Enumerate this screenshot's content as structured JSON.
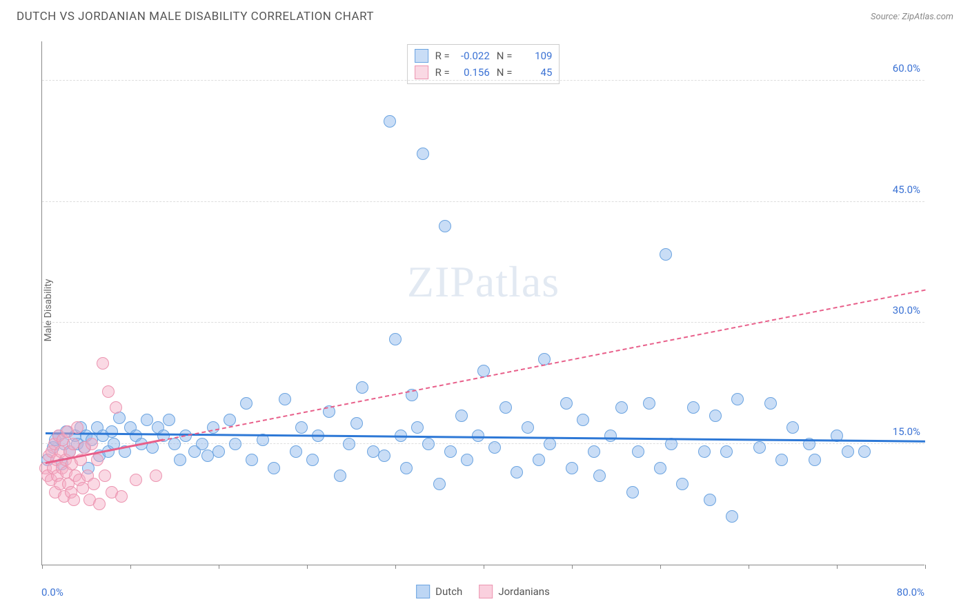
{
  "header": {
    "title": "DUTCH VS JORDANIAN MALE DISABILITY CORRELATION CHART",
    "source": "Source: ZipAtlas.com"
  },
  "chart": {
    "type": "scatter",
    "y_axis_label": "Male Disability",
    "watermark_bold": "ZIP",
    "watermark_light": "atlas",
    "xlim": [
      0,
      80
    ],
    "ylim": [
      0,
      65
    ],
    "x_min_label": "0.0%",
    "x_max_label": "80.0%",
    "x_ticks_count": 11,
    "y_gridlines": [
      15,
      30,
      45,
      60
    ],
    "y_tick_labels": [
      "15.0%",
      "30.0%",
      "45.0%",
      "60.0%"
    ],
    "background_color": "#ffffff",
    "grid_color": "#dddddd",
    "axis_color": "#888888",
    "text_color": "#555555",
    "value_color": "#3b72d4",
    "point_radius": 9,
    "series": [
      {
        "name": "Dutch",
        "fill": "rgba(135,180,235,0.45)",
        "stroke": "#6aa3e0",
        "trend_color": "#2d78d6",
        "trend_width": 3,
        "trend_dash": "solid",
        "R": "-0.022",
        "N": "109",
        "trend_x1": 0.3,
        "trend_y1": 16.2,
        "trend_x2": 80,
        "trend_y2": 15.2,
        "points": [
          [
            0.5,
            13
          ],
          [
            1,
            14.5
          ],
          [
            1.2,
            15.5
          ],
          [
            1.5,
            16
          ],
          [
            1.8,
            12.5
          ],
          [
            2,
            15
          ],
          [
            2.2,
            16.5
          ],
          [
            2.5,
            14
          ],
          [
            3,
            16
          ],
          [
            3.2,
            15
          ],
          [
            3.5,
            17
          ],
          [
            3.8,
            14.5
          ],
          [
            4,
            16
          ],
          [
            4.2,
            12
          ],
          [
            4.5,
            15.5
          ],
          [
            5,
            17
          ],
          [
            5.2,
            13.5
          ],
          [
            5.5,
            16
          ],
          [
            6,
            14
          ],
          [
            6.3,
            16.5
          ],
          [
            6.5,
            15
          ],
          [
            7,
            18.2
          ],
          [
            7.5,
            14
          ],
          [
            8,
            17
          ],
          [
            8.5,
            16
          ],
          [
            9,
            15
          ],
          [
            9.5,
            18
          ],
          [
            10,
            14.5
          ],
          [
            10.5,
            17
          ],
          [
            11,
            16
          ],
          [
            11.5,
            18
          ],
          [
            12,
            15
          ],
          [
            12.5,
            13
          ],
          [
            13,
            16
          ],
          [
            13.8,
            14
          ],
          [
            14.5,
            15
          ],
          [
            15,
            13.5
          ],
          [
            15.5,
            17
          ],
          [
            16,
            14
          ],
          [
            17,
            18
          ],
          [
            17.5,
            15
          ],
          [
            18.5,
            20
          ],
          [
            19,
            13
          ],
          [
            20,
            15.5
          ],
          [
            21,
            12
          ],
          [
            22,
            20.5
          ],
          [
            23,
            14
          ],
          [
            23.5,
            17
          ],
          [
            24.5,
            13
          ],
          [
            25,
            16
          ],
          [
            26,
            19
          ],
          [
            27,
            11
          ],
          [
            27.8,
            15
          ],
          [
            28.5,
            17.5
          ],
          [
            29,
            22
          ],
          [
            30,
            14
          ],
          [
            31,
            13.5
          ],
          [
            31.5,
            55
          ],
          [
            32,
            28
          ],
          [
            32.5,
            16
          ],
          [
            33,
            12
          ],
          [
            33.5,
            21
          ],
          [
            34,
            17
          ],
          [
            34.5,
            51
          ],
          [
            35,
            15
          ],
          [
            36,
            10
          ],
          [
            36.5,
            42
          ],
          [
            37,
            14
          ],
          [
            38,
            18.5
          ],
          [
            38.5,
            13
          ],
          [
            39.5,
            16
          ],
          [
            40,
            24
          ],
          [
            41,
            14.5
          ],
          [
            42,
            19.5
          ],
          [
            43,
            11.5
          ],
          [
            44,
            17
          ],
          [
            45,
            13
          ],
          [
            45.5,
            25.5
          ],
          [
            46,
            15
          ],
          [
            47.5,
            20
          ],
          [
            48,
            12
          ],
          [
            49,
            18
          ],
          [
            50,
            14
          ],
          [
            50.5,
            11
          ],
          [
            51.5,
            16
          ],
          [
            52.5,
            19.5
          ],
          [
            53.5,
            9
          ],
          [
            54,
            14
          ],
          [
            55,
            20
          ],
          [
            56,
            12
          ],
          [
            56.5,
            38.5
          ],
          [
            57,
            15
          ],
          [
            58,
            10
          ],
          [
            59,
            19.5
          ],
          [
            60,
            14
          ],
          [
            60.5,
            8
          ],
          [
            61,
            18.5
          ],
          [
            62,
            14
          ],
          [
            63,
            20.5
          ],
          [
            65,
            14.5
          ],
          [
            66,
            20
          ],
          [
            67,
            13
          ],
          [
            68,
            17
          ],
          [
            69.5,
            15
          ],
          [
            70,
            13
          ],
          [
            72,
            16
          ],
          [
            73,
            14
          ],
          [
            74.5,
            14
          ],
          [
            62.5,
            6
          ]
        ]
      },
      {
        "name": "Jordanians",
        "fill": "rgba(245,170,195,0.45)",
        "stroke": "#ec94b0",
        "trend_color": "#e85f8a",
        "trend_solid_color": "#e85f8a",
        "trend_width": 2,
        "trend_dash": "dashed",
        "R": "0.156",
        "N": "45",
        "trend_x1": 0.3,
        "trend_y1": 12.5,
        "trend_x2": 80,
        "trend_y2": 34,
        "trend_solid_x2": 11,
        "points": [
          [
            0.3,
            12
          ],
          [
            0.5,
            11
          ],
          [
            0.6,
            13.5
          ],
          [
            0.8,
            10.5
          ],
          [
            0.9,
            14
          ],
          [
            1.0,
            12
          ],
          [
            1.1,
            15
          ],
          [
            1.2,
            9
          ],
          [
            1.3,
            13
          ],
          [
            1.4,
            11
          ],
          [
            1.5,
            16
          ],
          [
            1.6,
            10
          ],
          [
            1.7,
            14
          ],
          [
            1.8,
            12
          ],
          [
            1.9,
            15.5
          ],
          [
            2.0,
            8.5
          ],
          [
            2.1,
            13
          ],
          [
            2.2,
            11.5
          ],
          [
            2.3,
            16.5
          ],
          [
            2.4,
            10
          ],
          [
            2.5,
            14
          ],
          [
            2.6,
            9
          ],
          [
            2.7,
            12.5
          ],
          [
            2.8,
            15
          ],
          [
            2.9,
            8
          ],
          [
            3.0,
            11
          ],
          [
            3.2,
            17
          ],
          [
            3.4,
            10.5
          ],
          [
            3.5,
            13
          ],
          [
            3.7,
            9.5
          ],
          [
            3.9,
            14.5
          ],
          [
            4.1,
            11
          ],
          [
            4.3,
            8
          ],
          [
            4.5,
            15
          ],
          [
            4.7,
            10
          ],
          [
            5.0,
            13
          ],
          [
            5.2,
            7.5
          ],
          [
            5.5,
            25
          ],
          [
            5.7,
            11
          ],
          [
            6.0,
            21.5
          ],
          [
            6.3,
            9
          ],
          [
            6.7,
            19.5
          ],
          [
            7.2,
            8.5
          ],
          [
            8.5,
            10.5
          ],
          [
            10.3,
            11
          ]
        ]
      }
    ],
    "bottom_legend": [
      {
        "label": "Dutch",
        "fill": "rgba(135,180,235,0.55)",
        "stroke": "#6aa3e0"
      },
      {
        "label": "Jordanians",
        "fill": "rgba(245,170,195,0.55)",
        "stroke": "#ec94b0"
      }
    ]
  }
}
